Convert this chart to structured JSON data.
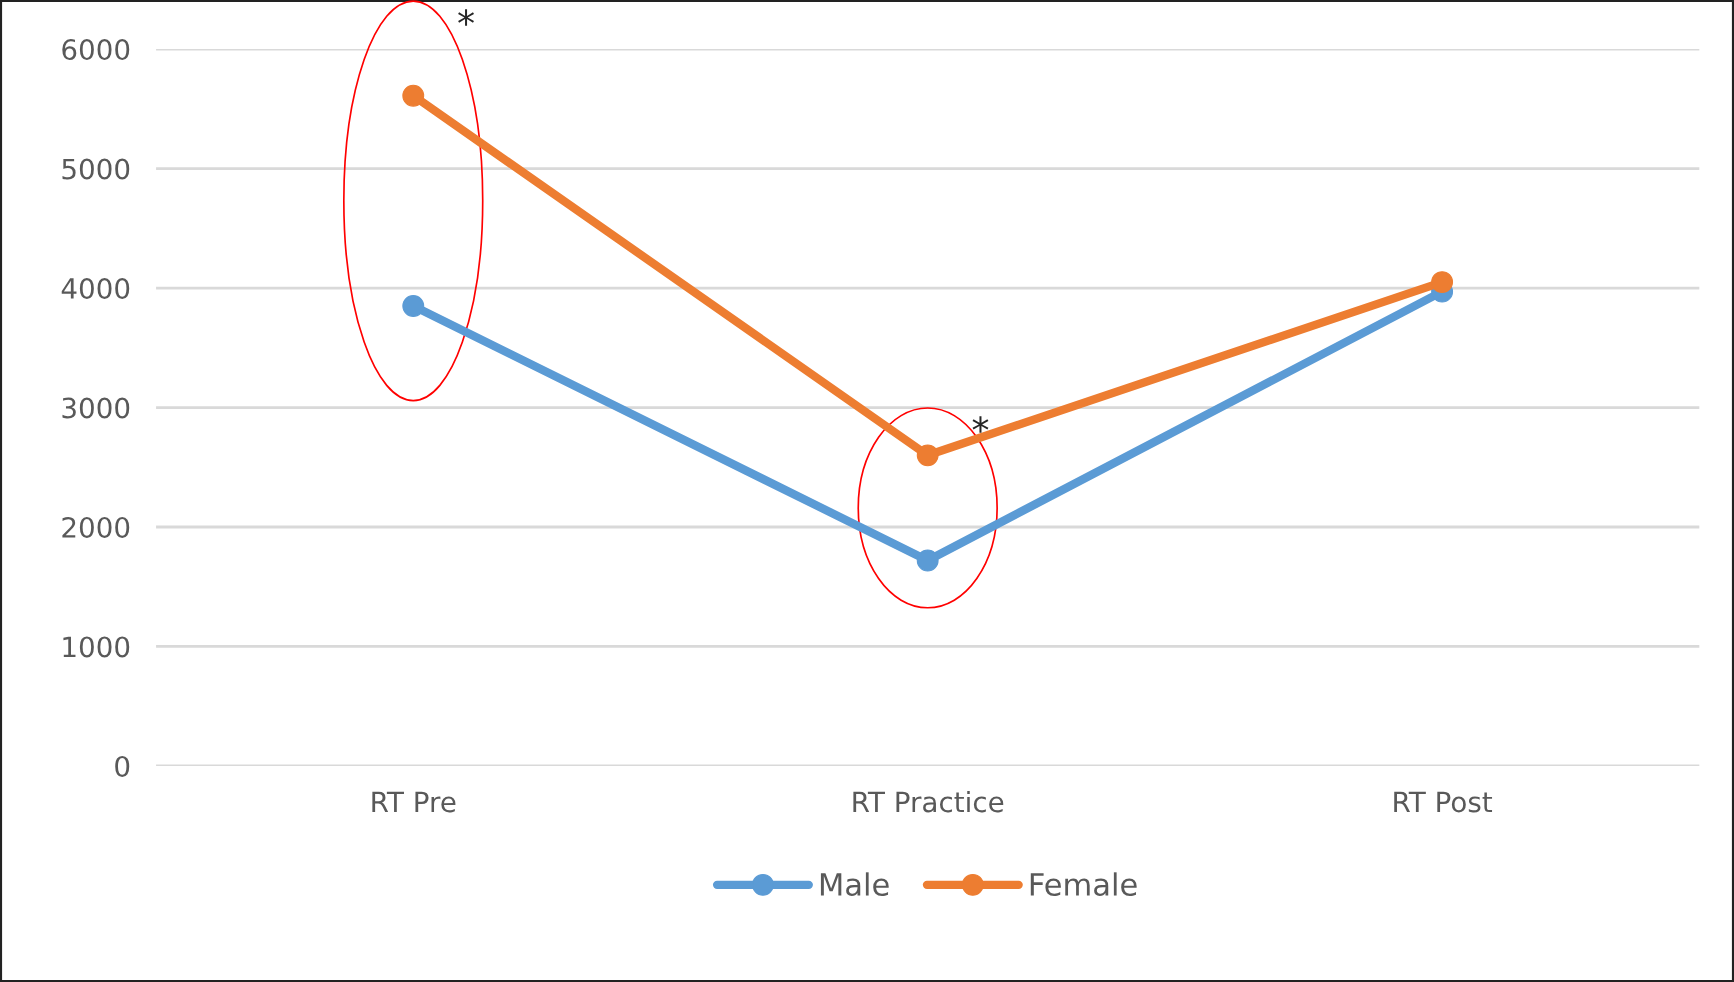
{
  "chart_data": {
    "type": "line",
    "categories": [
      "RT Pre",
      "RT Practice",
      "RT Post"
    ],
    "series": [
      {
        "name": "Male",
        "color": "#5b9bd5",
        "values": [
          3850,
          1720,
          3970
        ]
      },
      {
        "name": "Female",
        "color": "#ed7d31",
        "values": [
          5610,
          2600,
          4050
        ]
      }
    ],
    "ylim": [
      0,
      6000
    ],
    "yticks": [
      0,
      1000,
      2000,
      3000,
      4000,
      5000,
      6000
    ],
    "grid": "y",
    "legend": "bottom",
    "marker": "circle",
    "line_style": "solid",
    "annotations": [
      "*",
      "*"
    ]
  }
}
